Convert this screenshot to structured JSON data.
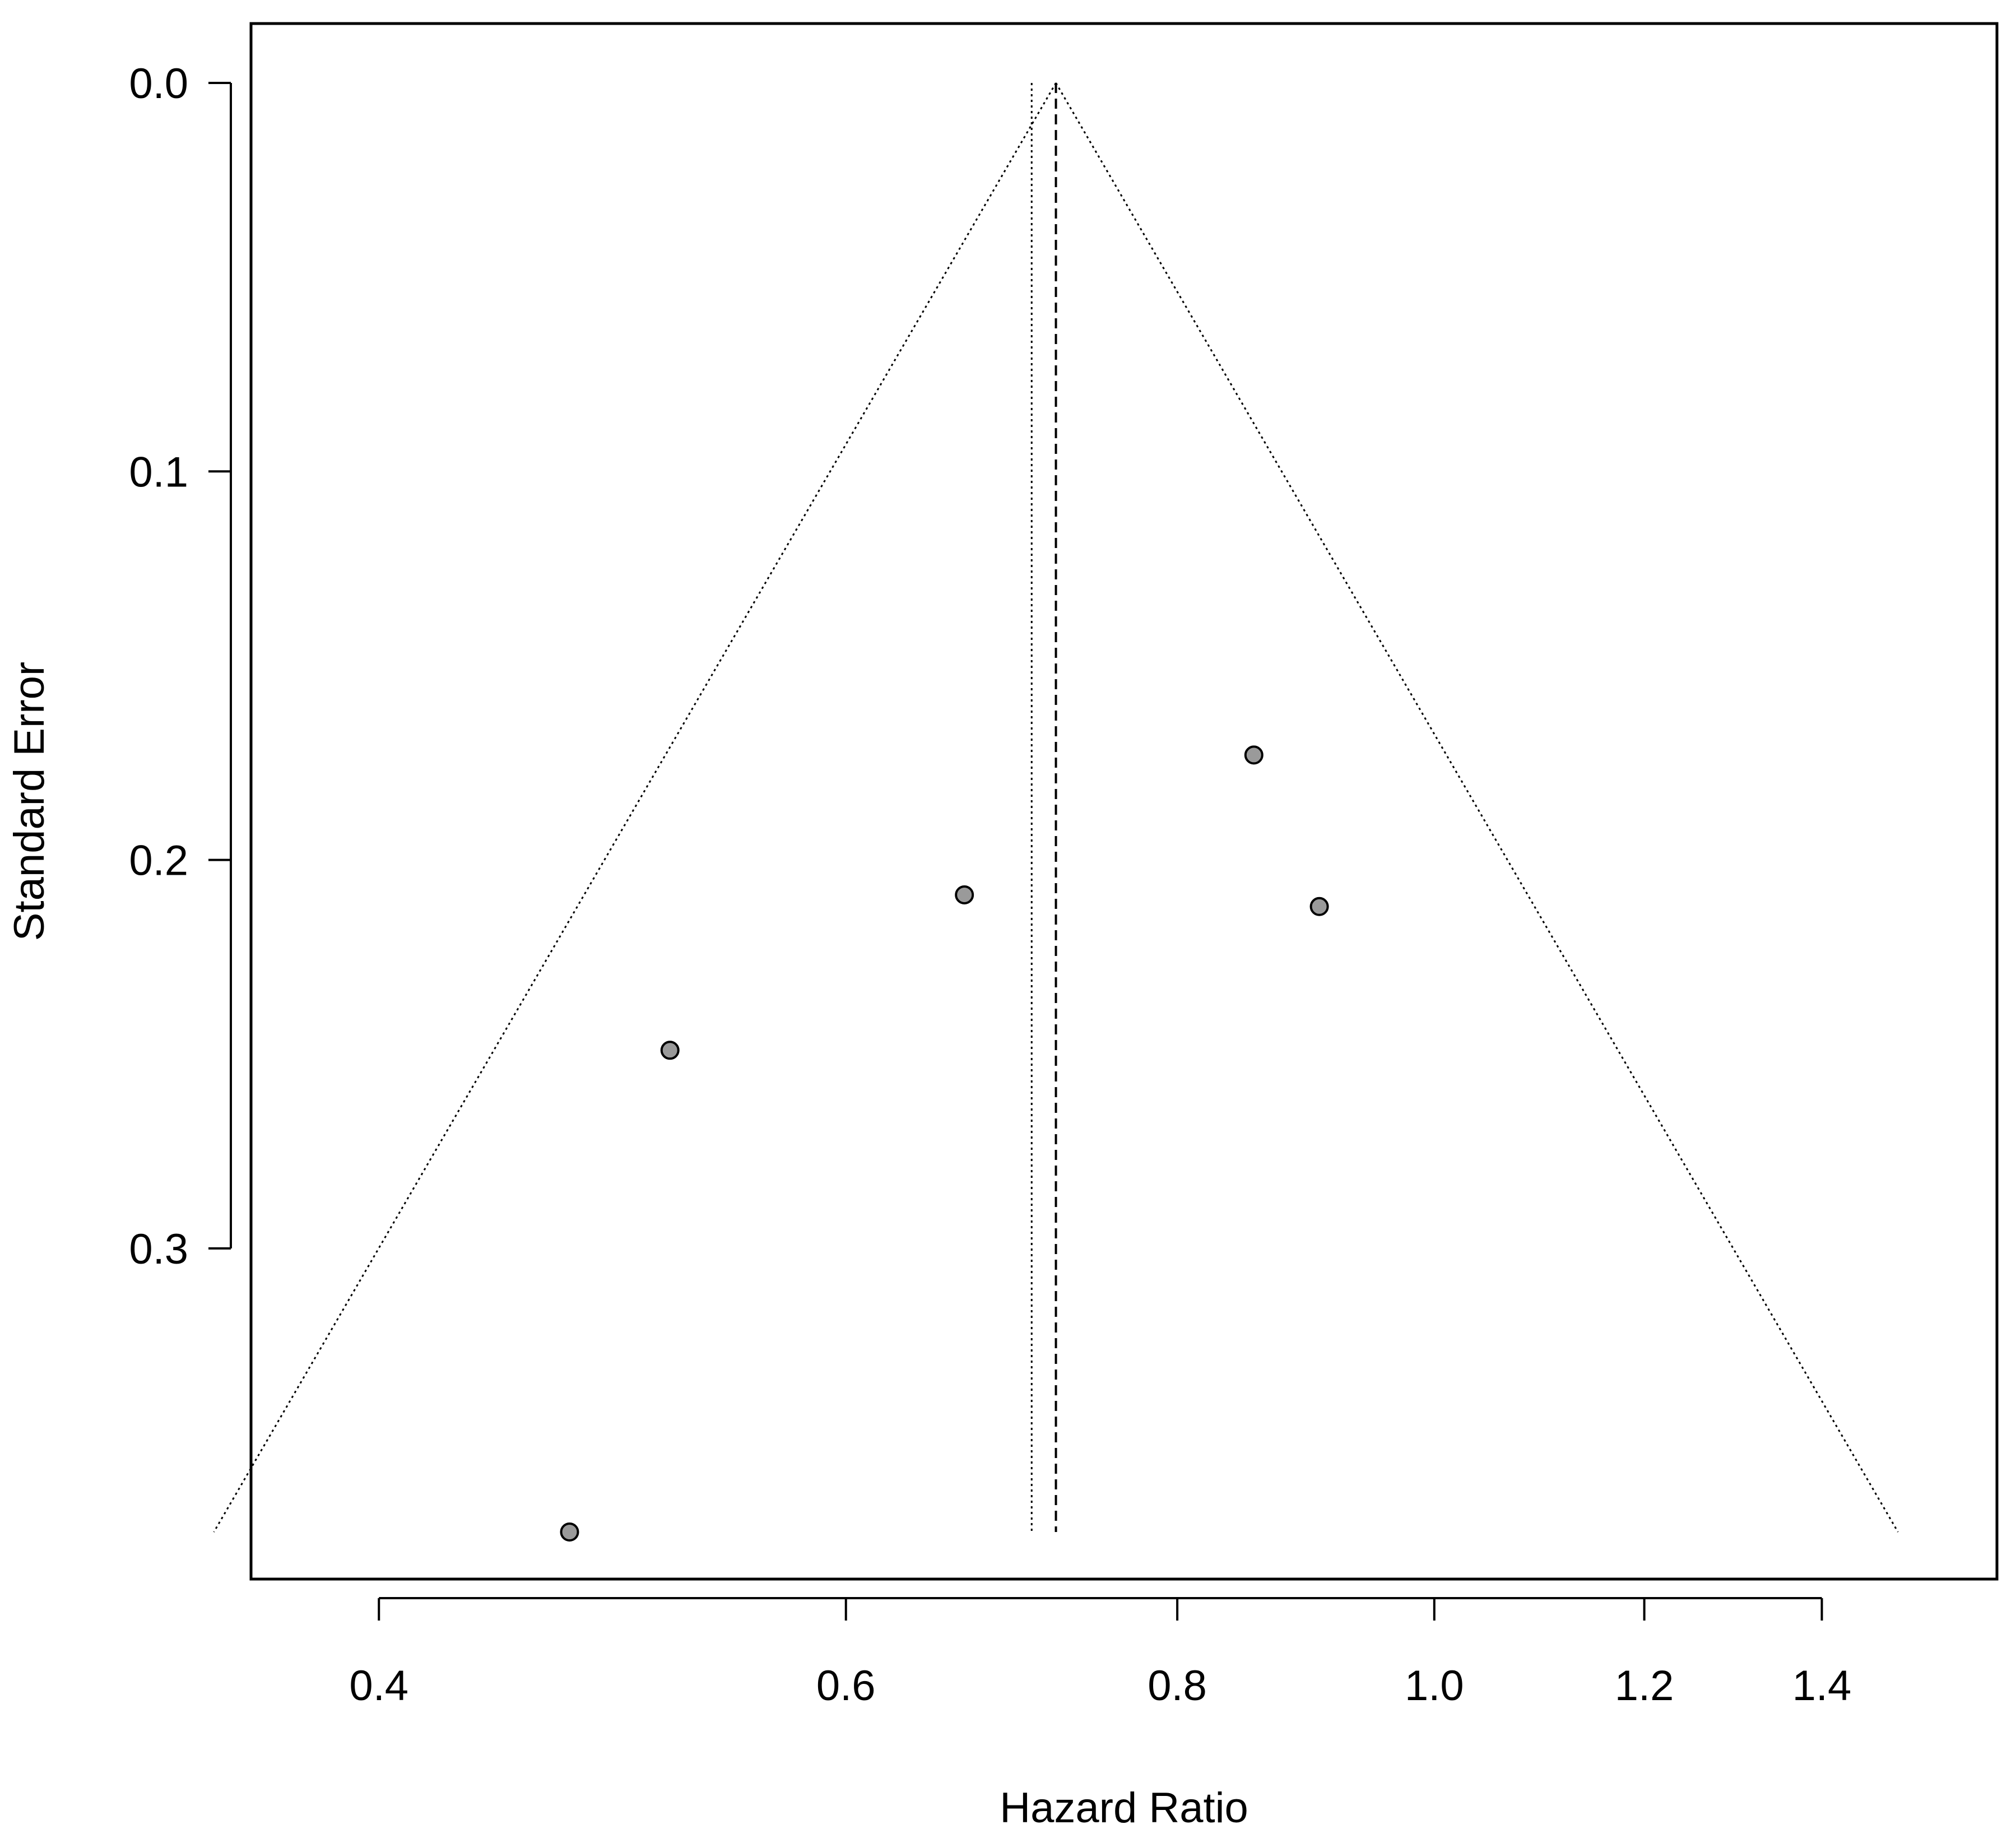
{
  "chart_data": {
    "type": "scatter",
    "title": "",
    "xlabel": "Hazard Ratio",
    "ylabel": "Standard Error",
    "x_scale": "log",
    "y_reversed": true,
    "xlim": [
      0.37,
      1.53
    ],
    "ylim": [
      0.0,
      0.373
    ],
    "x_ticks": [
      0.4,
      0.6,
      0.8,
      1.0,
      1.2,
      1.4
    ],
    "x_tick_labels": [
      "0.4",
      "0.6",
      "0.8",
      "1.0",
      "1.2",
      "1.4"
    ],
    "y_ticks": [
      0.0,
      0.1,
      0.2,
      0.3
    ],
    "y_tick_labels": [
      "0.0",
      "0.1",
      "0.2",
      "0.3"
    ],
    "grid": false,
    "legend": "none",
    "pooled_estimate": 0.72,
    "alternate_estimate": 0.705,
    "funnel_max_se": 0.373,
    "funnel_z": 1.96,
    "points": [
      {
        "x": 0.855,
        "y": 0.173
      },
      {
        "x": 0.665,
        "y": 0.209
      },
      {
        "x": 0.905,
        "y": 0.212
      },
      {
        "x": 0.515,
        "y": 0.249
      },
      {
        "x": 0.472,
        "y": 0.373
      }
    ],
    "point_color": "#9a9a9a"
  }
}
